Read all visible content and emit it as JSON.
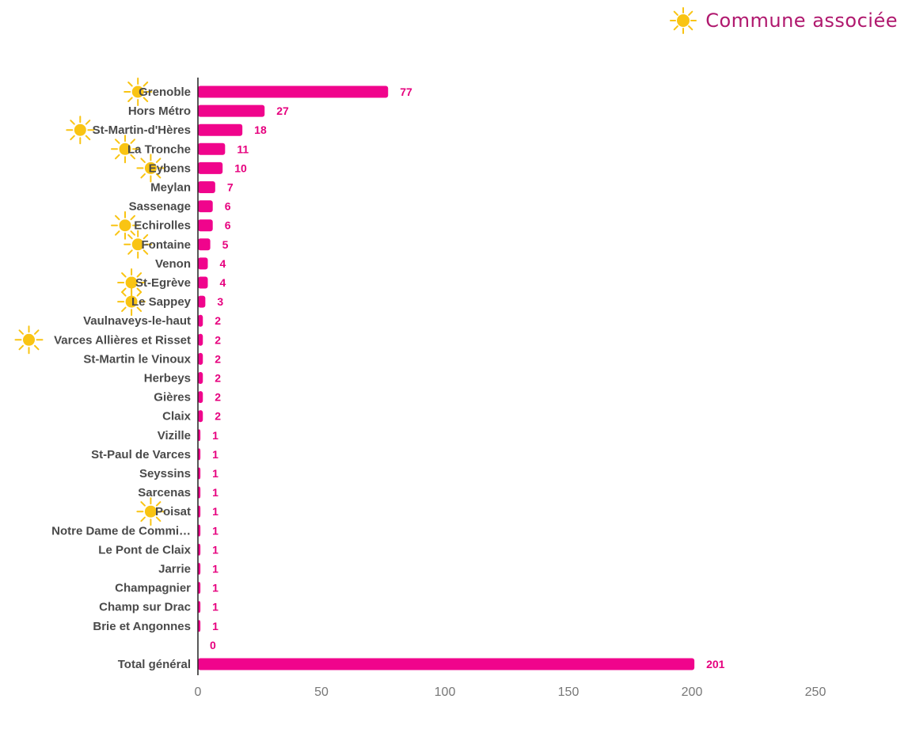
{
  "legend": {
    "label": "Commune associée",
    "icon": "sun-icon"
  },
  "colors": {
    "bar": "#f0048c",
    "value_label": "#e6007e",
    "sun": "#f9c413",
    "legend_text": "#b0186e"
  },
  "chart_data": {
    "type": "bar",
    "orientation": "horizontal",
    "title": "",
    "xlabel": "",
    "ylabel": "",
    "xlim": [
      0,
      250
    ],
    "x_ticks": [
      0,
      50,
      100,
      150,
      200,
      250
    ],
    "grid": false,
    "legend_position": "top-right",
    "categories": [
      "Grenoble",
      "Hors Métro",
      "St-Martin-d'Hères",
      "La Tronche",
      "Eybens",
      "Meylan",
      "Sassenage",
      "Echirolles",
      "Fontaine",
      "Venon",
      "St-Egrève",
      "Le Sappey",
      "Vaulnaveys-le-haut",
      "Varces Allières et Risset",
      "St-Martin le Vinoux",
      "Herbeys",
      "Gières",
      "Claix",
      "Vizille",
      "St-Paul de Varces",
      "Seyssins",
      "Sarcenas",
      "Poisat",
      "Notre Dame de Commi…",
      "Le Pont de Claix",
      "Jarrie",
      "Champagnier",
      "Champ sur Drac",
      "Brie et Angonnes",
      "",
      "Total général"
    ],
    "values": [
      77,
      27,
      18,
      11,
      10,
      7,
      6,
      6,
      5,
      4,
      4,
      3,
      2,
      2,
      2,
      2,
      2,
      2,
      1,
      1,
      1,
      1,
      1,
      1,
      1,
      1,
      1,
      1,
      1,
      0,
      201
    ],
    "associated": [
      true,
      false,
      true,
      true,
      true,
      false,
      false,
      true,
      true,
      false,
      true,
      true,
      false,
      true,
      false,
      false,
      false,
      false,
      false,
      false,
      false,
      false,
      true,
      false,
      false,
      false,
      false,
      false,
      false,
      false,
      false
    ]
  }
}
